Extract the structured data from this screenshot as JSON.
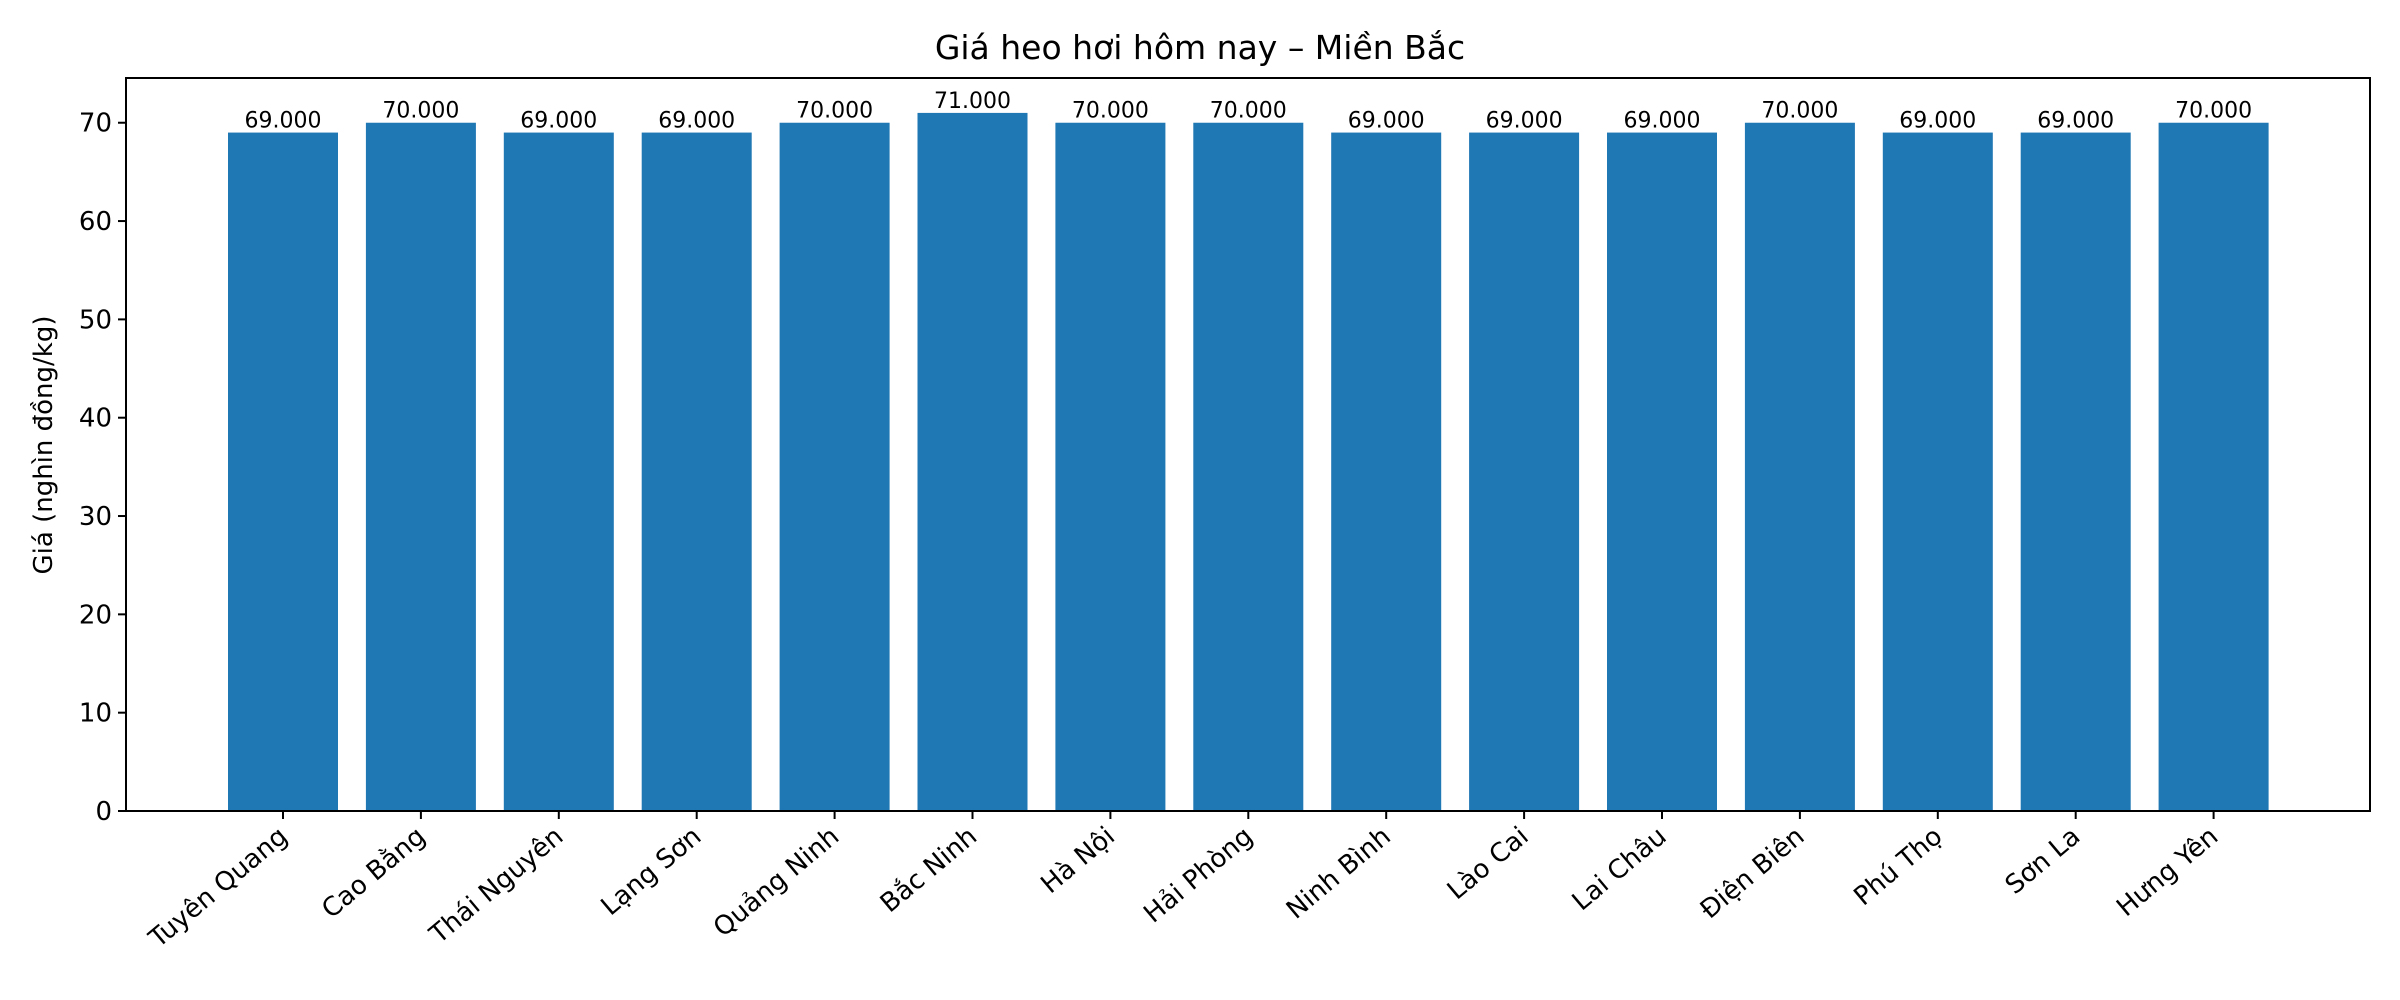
{
  "chart_data": {
    "type": "bar",
    "title": "Giá heo hơi hôm nay – Miền Bắc",
    "xlabel": "",
    "ylabel": "Giá (nghìn đồng/kg)",
    "categories": [
      "Tuyên Quang",
      "Cao Bằng",
      "Thái Nguyên",
      "Lạng Sơn",
      "Quảng Ninh",
      "Bắc Ninh",
      "Hà Nội",
      "Hải Phòng",
      "Ninh Bình",
      "Lào Cai",
      "Lai Châu",
      "Điện Biên",
      "Phú Thọ",
      "Sơn La",
      "Hưng Yên"
    ],
    "values": [
      69,
      70,
      69,
      69,
      70,
      71,
      70,
      70,
      69,
      69,
      69,
      70,
      69,
      69,
      70
    ],
    "value_labels": [
      "69.000",
      "70.000",
      "69.000",
      "69.000",
      "70.000",
      "71.000",
      "70.000",
      "70.000",
      "69.000",
      "69.000",
      "69.000",
      "70.000",
      "69.000",
      "69.000",
      "70.000"
    ],
    "ylim": [
      0,
      74.55
    ],
    "yticks": [
      0,
      10,
      20,
      30,
      40,
      50,
      60,
      70
    ],
    "grid": false,
    "legend": null,
    "bar_color": "#1f77b4",
    "xtick_rotation": -40
  }
}
